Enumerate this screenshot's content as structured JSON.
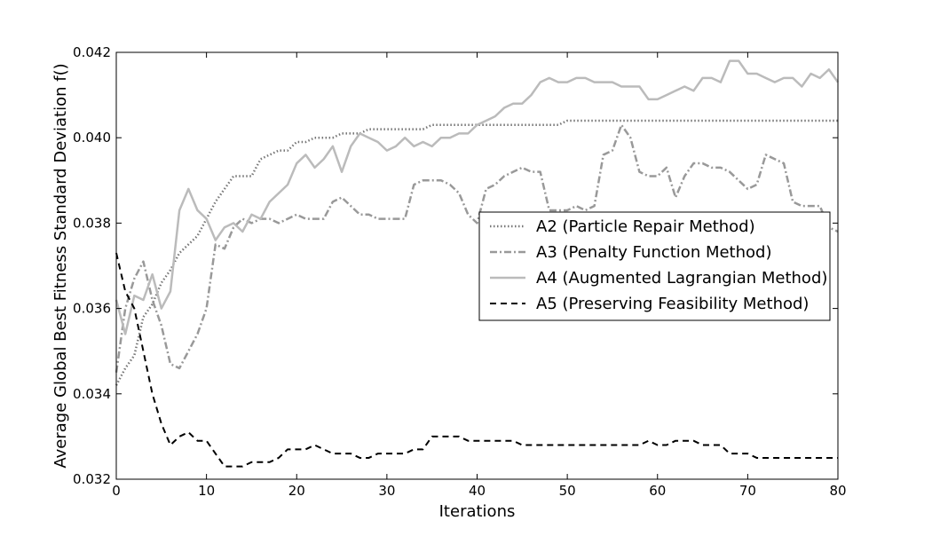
{
  "chart_data": {
    "type": "line",
    "title": "",
    "xlabel": "Iterations",
    "ylabel": "Average Global Best Fitness Standard Deviation f()",
    "xlim": [
      0,
      80
    ],
    "ylim": [
      0.032,
      0.042
    ],
    "xticks": [
      0,
      10,
      20,
      30,
      40,
      50,
      60,
      70,
      80
    ],
    "xtick_labels": [
      "0",
      "10",
      "20",
      "30",
      "40",
      "50",
      "60",
      "70",
      "80"
    ],
    "yticks": [
      0.032,
      0.034,
      0.036,
      0.038,
      0.04,
      0.042
    ],
    "ytick_labels": [
      "0.032",
      "0.034",
      "0.036",
      "0.038",
      "0.040",
      "0.042"
    ],
    "grid": false,
    "legend_position": "center-right",
    "series": [
      {
        "name": "A2 (Particle Repair Method)",
        "color": "#777777",
        "linestyle": "dotted",
        "x": [
          0,
          1,
          2,
          3,
          4,
          5,
          6,
          7,
          8,
          9,
          10,
          11,
          12,
          13,
          14,
          15,
          16,
          17,
          18,
          19,
          20,
          21,
          22,
          23,
          24,
          25,
          26,
          27,
          28,
          29,
          30,
          31,
          32,
          33,
          34,
          35,
          36,
          37,
          38,
          39,
          40,
          41,
          42,
          43,
          44,
          45,
          46,
          47,
          48,
          49,
          50,
          51,
          52,
          53,
          54,
          55,
          56,
          57,
          58,
          59,
          60,
          61,
          62,
          63,
          64,
          65,
          66,
          67,
          68,
          69,
          70,
          71,
          72,
          73,
          74,
          75,
          76,
          77,
          78,
          79,
          80
        ],
        "values": [
          0.0342,
          0.0346,
          0.0349,
          0.0358,
          0.0361,
          0.0366,
          0.0369,
          0.0373,
          0.0375,
          0.0377,
          0.0381,
          0.0385,
          0.0388,
          0.0391,
          0.0391,
          0.0391,
          0.0395,
          0.0396,
          0.0397,
          0.0397,
          0.0399,
          0.0399,
          0.04,
          0.04,
          0.04,
          0.0401,
          0.0401,
          0.0401,
          0.0402,
          0.0402,
          0.0402,
          0.0402,
          0.0402,
          0.0402,
          0.0402,
          0.0403,
          0.0403,
          0.0403,
          0.0403,
          0.0403,
          0.0403,
          0.0403,
          0.0403,
          0.0403,
          0.0403,
          0.0403,
          0.0403,
          0.0403,
          0.0403,
          0.0403,
          0.0404,
          0.0404,
          0.0404,
          0.0404,
          0.0404,
          0.0404,
          0.0404,
          0.0404,
          0.0404,
          0.0404,
          0.0404,
          0.0404,
          0.0404,
          0.0404,
          0.0404,
          0.0404,
          0.0404,
          0.0404,
          0.0404,
          0.0404,
          0.0404,
          0.0404,
          0.0404,
          0.0404,
          0.0404,
          0.0404,
          0.0404,
          0.0404,
          0.0404,
          0.0404,
          0.0404
        ]
      },
      {
        "name": "A3 (Penalty Function Method)",
        "color": "#999999",
        "linestyle": "dashdot",
        "x": [
          0,
          1,
          2,
          3,
          4,
          5,
          6,
          7,
          8,
          9,
          10,
          11,
          12,
          13,
          14,
          15,
          16,
          17,
          18,
          19,
          20,
          21,
          22,
          23,
          24,
          25,
          26,
          27,
          28,
          29,
          30,
          31,
          32,
          33,
          34,
          35,
          36,
          37,
          38,
          39,
          40,
          41,
          42,
          43,
          44,
          45,
          46,
          47,
          48,
          49,
          50,
          51,
          52,
          53,
          54,
          55,
          56,
          57,
          58,
          59,
          60,
          61,
          62,
          63,
          64,
          65,
          66,
          67,
          68,
          69,
          70,
          71,
          72,
          73,
          74,
          75,
          76,
          77,
          78,
          79,
          80
        ],
        "values": [
          0.0345,
          0.036,
          0.0367,
          0.0371,
          0.0362,
          0.0356,
          0.0347,
          0.0346,
          0.035,
          0.0354,
          0.036,
          0.0375,
          0.0374,
          0.0379,
          0.0381,
          0.038,
          0.0381,
          0.0381,
          0.038,
          0.0381,
          0.0382,
          0.0381,
          0.0381,
          0.0381,
          0.0385,
          0.0386,
          0.0384,
          0.0382,
          0.0382,
          0.0381,
          0.0381,
          0.0381,
          0.0381,
          0.0389,
          0.039,
          0.039,
          0.039,
          0.0389,
          0.0387,
          0.0382,
          0.038,
          0.0388,
          0.0389,
          0.0391,
          0.0392,
          0.0393,
          0.0392,
          0.0392,
          0.0383,
          0.0383,
          0.0383,
          0.0384,
          0.0383,
          0.0384,
          0.0396,
          0.0397,
          0.0403,
          0.04,
          0.0392,
          0.0391,
          0.0391,
          0.0393,
          0.0386,
          0.0391,
          0.0394,
          0.0394,
          0.0393,
          0.0393,
          0.0392,
          0.039,
          0.0388,
          0.0389,
          0.0396,
          0.0395,
          0.0394,
          0.0385,
          0.0384,
          0.0384,
          0.0384,
          0.0379,
          0.0378
        ]
      },
      {
        "name": "A4 (Augmented Lagrangian Method)",
        "color": "#bbbbbb",
        "linestyle": "solid",
        "x": [
          0,
          1,
          2,
          3,
          4,
          5,
          6,
          7,
          8,
          9,
          10,
          11,
          12,
          13,
          14,
          15,
          16,
          17,
          18,
          19,
          20,
          21,
          22,
          23,
          24,
          25,
          26,
          27,
          28,
          29,
          30,
          31,
          32,
          33,
          34,
          35,
          36,
          37,
          38,
          39,
          40,
          41,
          42,
          43,
          44,
          45,
          46,
          47,
          48,
          49,
          50,
          51,
          52,
          53,
          54,
          55,
          56,
          57,
          58,
          59,
          60,
          61,
          62,
          63,
          64,
          65,
          66,
          67,
          68,
          69,
          70,
          71,
          72,
          73,
          74,
          75,
          76,
          77,
          78,
          79,
          80
        ],
        "values": [
          0.0362,
          0.0354,
          0.0363,
          0.0362,
          0.0368,
          0.036,
          0.0364,
          0.0383,
          0.0388,
          0.0383,
          0.0381,
          0.0376,
          0.0379,
          0.038,
          0.0378,
          0.0382,
          0.0381,
          0.0385,
          0.0387,
          0.0389,
          0.0394,
          0.0396,
          0.0393,
          0.0395,
          0.0398,
          0.0392,
          0.0398,
          0.0401,
          0.04,
          0.0399,
          0.0397,
          0.0398,
          0.04,
          0.0398,
          0.0399,
          0.0398,
          0.04,
          0.04,
          0.0401,
          0.0401,
          0.0403,
          0.0404,
          0.0405,
          0.0407,
          0.0408,
          0.0408,
          0.041,
          0.0413,
          0.0414,
          0.0413,
          0.0413,
          0.0414,
          0.0414,
          0.0413,
          0.0413,
          0.0413,
          0.0412,
          0.0412,
          0.0412,
          0.0409,
          0.0409,
          0.041,
          0.0411,
          0.0412,
          0.0411,
          0.0414,
          0.0414,
          0.0413,
          0.0418,
          0.0418,
          0.0415,
          0.0415,
          0.0414,
          0.0413,
          0.0414,
          0.0414,
          0.0412,
          0.0415,
          0.0414,
          0.0416,
          0.0413
        ]
      },
      {
        "name": "A5 (Preserving Feasibility Method)",
        "color": "#000000",
        "linestyle": "dashed",
        "x": [
          0,
          1,
          2,
          3,
          4,
          5,
          6,
          7,
          8,
          9,
          10,
          11,
          12,
          13,
          14,
          15,
          16,
          17,
          18,
          19,
          20,
          21,
          22,
          23,
          24,
          25,
          26,
          27,
          28,
          29,
          30,
          31,
          32,
          33,
          34,
          35,
          36,
          37,
          38,
          39,
          40,
          41,
          42,
          43,
          44,
          45,
          46,
          47,
          48,
          49,
          50,
          51,
          52,
          53,
          54,
          55,
          56,
          57,
          58,
          59,
          60,
          61,
          62,
          63,
          64,
          65,
          66,
          67,
          68,
          69,
          70,
          71,
          72,
          73,
          74,
          75,
          76,
          77,
          78,
          79,
          80
        ],
        "values": [
          0.0373,
          0.0364,
          0.036,
          0.035,
          0.034,
          0.0333,
          0.0328,
          0.033,
          0.0331,
          0.0329,
          0.0329,
          0.0326,
          0.0323,
          0.0323,
          0.0323,
          0.0324,
          0.0324,
          0.0324,
          0.0325,
          0.0327,
          0.0327,
          0.0327,
          0.0328,
          0.0327,
          0.0326,
          0.0326,
          0.0326,
          0.0325,
          0.0325,
          0.0326,
          0.0326,
          0.0326,
          0.0326,
          0.0327,
          0.0327,
          0.033,
          0.033,
          0.033,
          0.033,
          0.0329,
          0.0329,
          0.0329,
          0.0329,
          0.0329,
          0.0329,
          0.0328,
          0.0328,
          0.0328,
          0.0328,
          0.0328,
          0.0328,
          0.0328,
          0.0328,
          0.0328,
          0.0328,
          0.0328,
          0.0328,
          0.0328,
          0.0328,
          0.0329,
          0.0328,
          0.0328,
          0.0329,
          0.0329,
          0.0329,
          0.0328,
          0.0328,
          0.0328,
          0.0326,
          0.0326,
          0.0326,
          0.0325,
          0.0325,
          0.0325,
          0.0325,
          0.0325,
          0.0325,
          0.0325,
          0.0325,
          0.0325,
          0.0325
        ]
      }
    ]
  }
}
